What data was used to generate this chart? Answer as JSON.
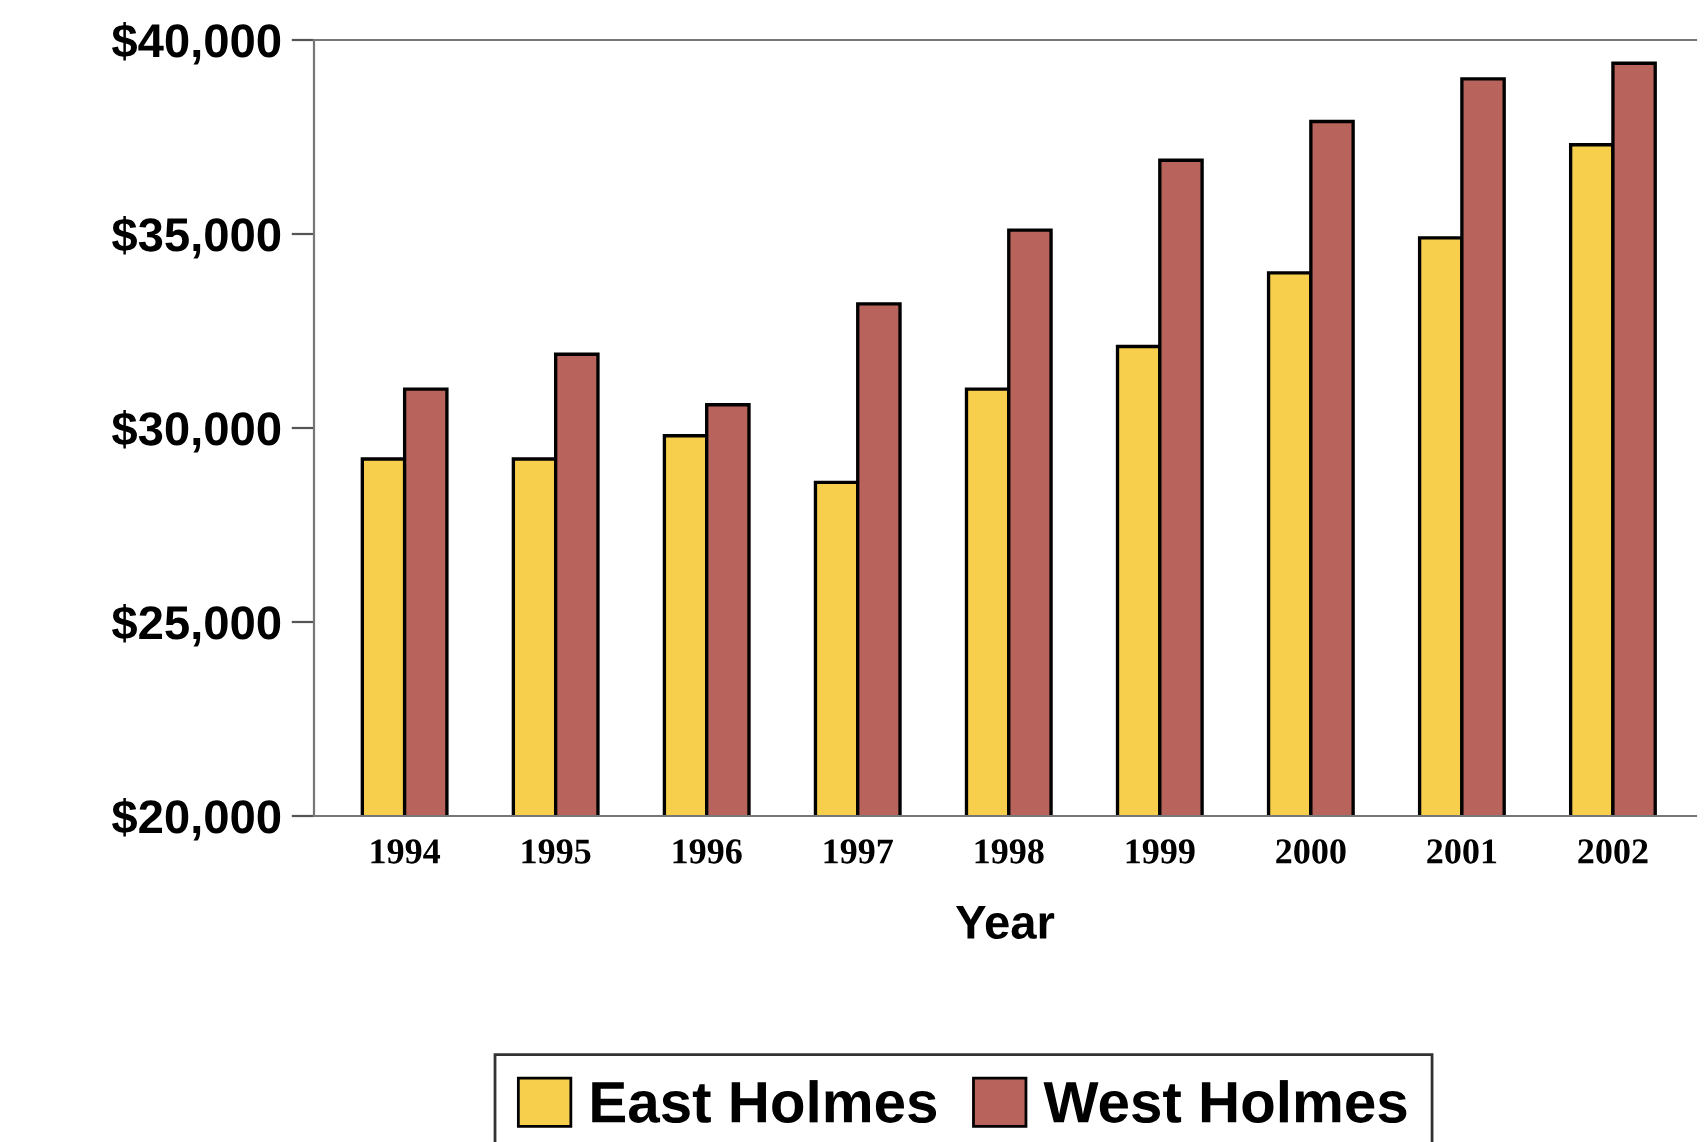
{
  "chart_data": {
    "type": "bar",
    "xlabel": "Year",
    "categories": [
      "1994",
      "1995",
      "1996",
      "1997",
      "1998",
      "1999",
      "2000",
      "2001",
      "2002"
    ],
    "series": [
      {
        "name": "East Holmes",
        "color": "#f8cf4c",
        "values": [
          29200,
          29200,
          29800,
          28600,
          31000,
          32100,
          34000,
          34900,
          37300
        ]
      },
      {
        "name": "West Holmes",
        "color": "#b8645c",
        "values": [
          31000,
          31900,
          30600,
          33200,
          35100,
          36900,
          37900,
          39000,
          39400
        ]
      }
    ],
    "ylim": [
      20000,
      40000
    ],
    "yticks": [
      {
        "value": 20000,
        "label": "$20,000"
      },
      {
        "value": 25000,
        "label": "$25,000"
      },
      {
        "value": 30000,
        "label": "$30,000"
      },
      {
        "value": 35000,
        "label": "$35,000"
      },
      {
        "value": 40000,
        "label": "$40,000"
      }
    ],
    "grid": false,
    "legend": "bottom"
  }
}
